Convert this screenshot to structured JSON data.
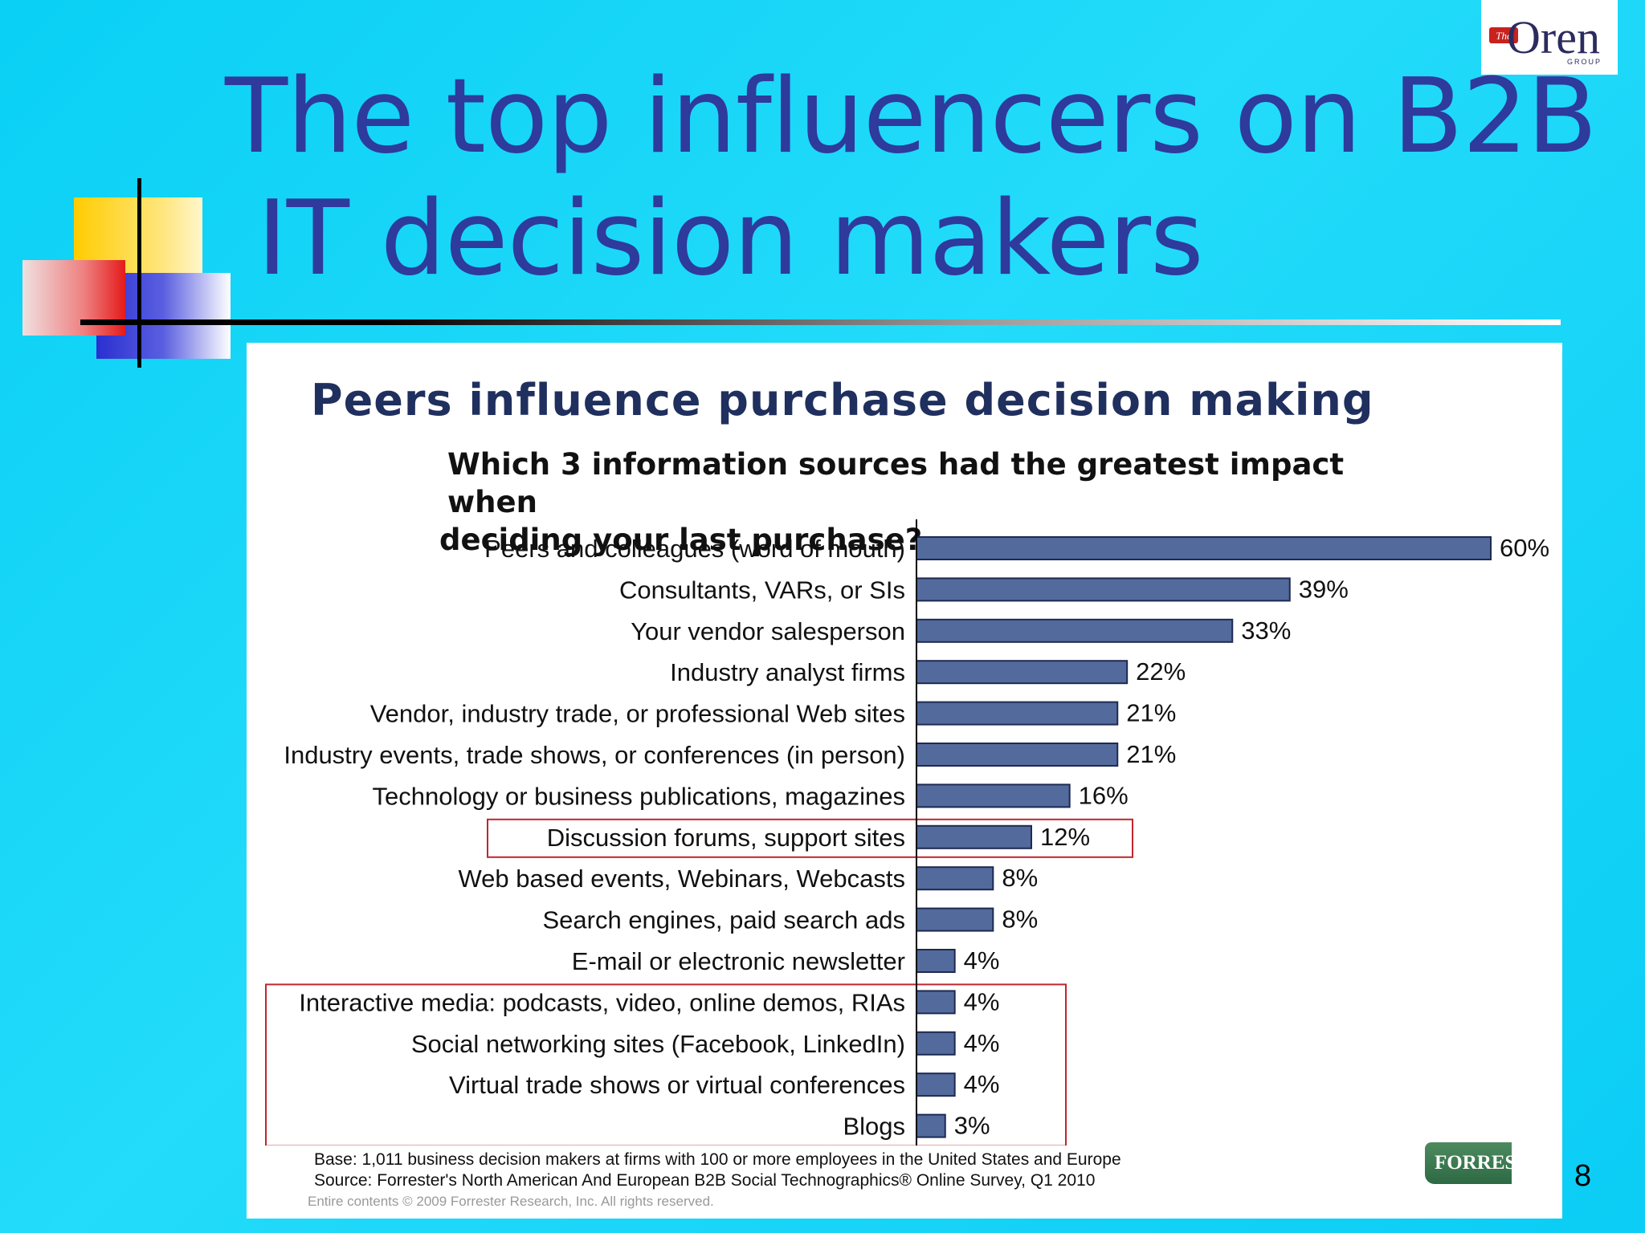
{
  "slide": {
    "title_line1": "The top influencers on B2B",
    "title_line2": "IT decision makers",
    "page_number": "8"
  },
  "logo": {
    "badge": "The",
    "name": "Oren",
    "sub": "GROUP"
  },
  "panel": {
    "title": "Peers influence purchase decision making",
    "question_line1": "Which 3 information sources had the greatest impact when",
    "question_line2": "deciding your last purchase?",
    "footnote_base": "Base: 1,011 business decision makers at firms with 100 or more employees in the United States and Europe",
    "footnote_source": "Source: Forrester's North American And European B2B Social Technographics® Online Survey, Q1 2010",
    "copyright": "Entire contents © 2009  Forrester Research, Inc. All rights reserved.",
    "brand": "FORRESTER"
  },
  "colors": {
    "bar": "#536a9c",
    "bar_stroke": "#1d2a52",
    "title": "#2e3a9c",
    "highlight_box": "#c0262c"
  },
  "chart_data": {
    "type": "bar",
    "orientation": "horizontal",
    "value_suffix": "%",
    "categories": [
      "Peers and colleagues (word of mouth)",
      "Consultants, VARs, or SIs",
      "Your vendor salesperson",
      "Industry analyst firms",
      "Vendor, industry trade, or professional Web sites",
      "Industry events, trade shows, or conferences (in person)",
      "Technology or business publications, magazines",
      "Discussion forums, support sites",
      "Web based events, Webinars, Webcasts",
      "Search engines, paid search ads",
      "E-mail or electronic newsletter",
      "Interactive media: podcasts, video, online demos, RIAs",
      "Social networking sites (Facebook, LinkedIn)",
      "Virtual trade shows or virtual conferences",
      "Blogs"
    ],
    "values": [
      60,
      39,
      33,
      22,
      21,
      21,
      16,
      12,
      8,
      8,
      4,
      4,
      4,
      4,
      3
    ],
    "xlim": [
      0,
      60
    ],
    "highlight_groups": [
      [
        7,
        7
      ],
      [
        11,
        14
      ]
    ],
    "grid": false
  }
}
